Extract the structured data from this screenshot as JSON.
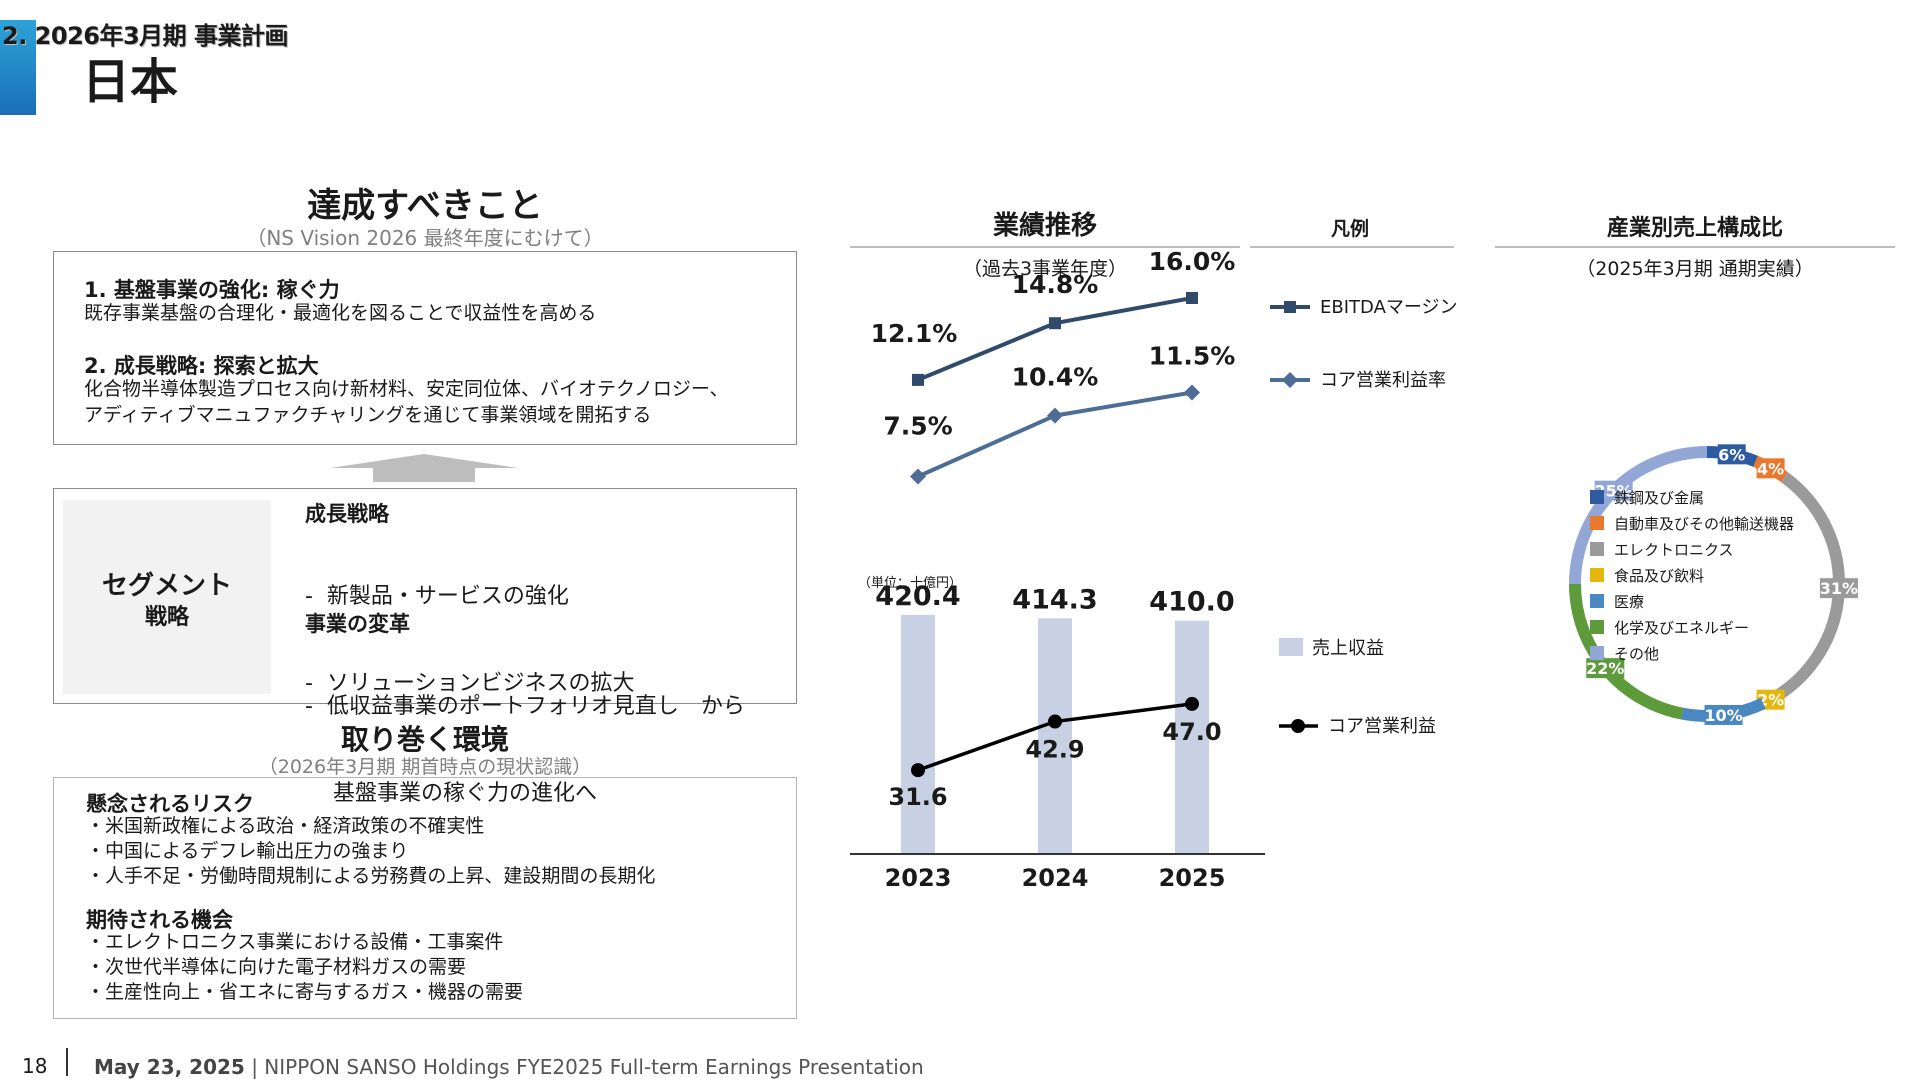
{
  "header": {
    "section": "2. 2026年3月期 事業計画",
    "title": "日本"
  },
  "achieve": {
    "title": "達成すべきこと",
    "subtitle": "（NS Vision 2026 最終年度にむけて）",
    "items": [
      {
        "heading": "1. 基盤事業の強化: 稼ぐ力",
        "lines": [
          "既存事業基盤の合理化・最適化を図ることで収益性を高める"
        ]
      },
      {
        "heading": "2. 成長戦略: 探索と拡大",
        "lines": [
          "化合物半導体製造プロセス向け新材料、安定同位体、バイオテクノロジー、",
          "アディティブマニュファクチャリングを通じて事業領域を開拓する"
        ]
      }
    ]
  },
  "segment": {
    "label_line1": "セグメント",
    "label_line2": "戦略",
    "growth_heading": "成長戦略",
    "growth_items": [
      "-  新製品・サービスの強化",
      "-  ソリューションビジネスの拡大"
    ],
    "reform_heading": "事業の変革",
    "reform_items": [
      "-  低収益事業のポートフォリオ見直し　から",
      "    基盤事業の稼ぐ力の進化へ"
    ]
  },
  "environment": {
    "title": "取り巻く環境",
    "subtitle": "（2026年3月期 期首時点の現状認識）",
    "risk_heading": "懸念されるリスク",
    "risks": [
      "・米国新政権による政治・経済政策の不確実性",
      "・中国によるデフレ輸出圧力の強まり",
      "・人手不足・労働時間規制による労務費の上昇、建設期間の長期化"
    ],
    "opp_heading": "期待される機会",
    "opps": [
      "・エレクトロニクス事業における設備・工事案件",
      "・次世代半導体に向けた電子材料ガスの需要",
      "・生産性向上・省エネに寄与するガス・機器の需要"
    ]
  },
  "performance": {
    "title": "業績推移",
    "subtitle": "（過去3事業年度）",
    "legend_title": "凡例",
    "unit": "（単位：十億円）"
  },
  "composition": {
    "title": "産業別売上構成比",
    "subtitle": "（2025年3月期 通期実績）"
  },
  "chart_data": [
    {
      "type": "line",
      "categories": [
        "2023",
        "2024",
        "2025"
      ],
      "series": [
        {
          "name": "EBITDAマージン",
          "values": [
            12.1,
            14.8,
            16.0
          ],
          "labels": [
            "12.1%",
            "14.8%",
            "16.0%"
          ],
          "color": "#2f4a6b",
          "marker": "square"
        },
        {
          "name": "コア営業利益率",
          "values": [
            7.5,
            10.4,
            11.5
          ],
          "labels": [
            "7.5%",
            "10.4%",
            "11.5%"
          ],
          "color": "#4d6d96",
          "marker": "diamond"
        }
      ]
    },
    {
      "type": "bar",
      "categories": [
        "2023",
        "2024",
        "2025"
      ],
      "series": [
        {
          "name": "売上収益",
          "values": [
            420.4,
            414.3,
            410.0
          ],
          "labels": [
            "420.4",
            "414.3",
            "410.0"
          ],
          "color": "#c7d1e3"
        },
        {
          "name": "コア営業利益",
          "type": "line",
          "values": [
            31.6,
            42.9,
            47.0
          ],
          "labels": [
            "31.6",
            "42.9",
            "47.0"
          ],
          "color": "#000000",
          "marker": "circle"
        }
      ]
    },
    {
      "type": "pie",
      "donut": true,
      "slices": [
        {
          "name": "鉄鋼及び金属",
          "value": 6,
          "label": "6%",
          "color": "#2e5aa0"
        },
        {
          "name": "自動車及びその他輸送機器",
          "value": 4,
          "label": "4%",
          "color": "#e8792d"
        },
        {
          "name": "エレクトロニクス",
          "value": 31,
          "label": "31%",
          "color": "#9a9a9a"
        },
        {
          "name": "食品及び飲料",
          "value": 2,
          "label": "2%",
          "color": "#e5b70c"
        },
        {
          "name": "医療",
          "value": 10,
          "label": "10%",
          "color": "#4a88c2"
        },
        {
          "name": "化学及びエネルギー",
          "value": 22,
          "label": "22%",
          "color": "#5d9a3c"
        },
        {
          "name": "その他",
          "value": 25,
          "label": "25%",
          "color": "#93a7d6"
        }
      ]
    }
  ],
  "footer": {
    "page": "18",
    "date": "May 23, 2025",
    "text": "| NIPPON SANSO Holdings FYE2025 Full-term Earnings Presentation"
  }
}
